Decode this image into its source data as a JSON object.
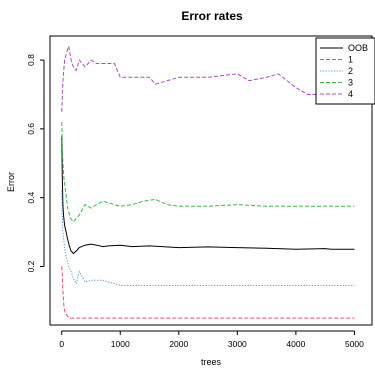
{
  "chart_data": {
    "type": "line",
    "title": "Error rates",
    "xlabel": "trees",
    "ylabel": "Error",
    "xlim": [
      0,
      5000
    ],
    "ylim": [
      0.03,
      0.87
    ],
    "x_ticks": [
      0,
      1000,
      2000,
      3000,
      4000,
      5000
    ],
    "y_ticks": [
      0.2,
      0.4,
      0.6,
      0.8
    ],
    "grid": false,
    "legend_position": "top-right",
    "series": [
      {
        "name": "OOB",
        "color": "#000000",
        "line_style": "solid",
        "points": [
          [
            1,
            0.58
          ],
          [
            10,
            0.46
          ],
          [
            20,
            0.38
          ],
          [
            30,
            0.35
          ],
          [
            50,
            0.32
          ],
          [
            75,
            0.3
          ],
          [
            100,
            0.28
          ],
          [
            130,
            0.26
          ],
          [
            160,
            0.245
          ],
          [
            200,
            0.238
          ],
          [
            250,
            0.245
          ],
          [
            300,
            0.255
          ],
          [
            400,
            0.262
          ],
          [
            500,
            0.265
          ],
          [
            600,
            0.262
          ],
          [
            700,
            0.258
          ],
          [
            800,
            0.26
          ],
          [
            1000,
            0.262
          ],
          [
            1200,
            0.258
          ],
          [
            1500,
            0.26
          ],
          [
            2000,
            0.255
          ],
          [
            2500,
            0.257
          ],
          [
            3000,
            0.255
          ],
          [
            3500,
            0.253
          ],
          [
            4000,
            0.25
          ],
          [
            4500,
            0.252
          ],
          [
            4600,
            0.25
          ],
          [
            5000,
            0.25
          ]
        ]
      },
      {
        "name": "1",
        "color": "#df536b",
        "line_style": "dashed",
        "points": [
          [
            1,
            0.2
          ],
          [
            10,
            0.17
          ],
          [
            20,
            0.13
          ],
          [
            30,
            0.1
          ],
          [
            40,
            0.08
          ],
          [
            60,
            0.065
          ],
          [
            80,
            0.06
          ],
          [
            100,
            0.055
          ],
          [
            150,
            0.05
          ],
          [
            5000,
            0.05
          ]
        ]
      },
      {
        "name": "2",
        "color": "#4d96d8",
        "line_style": "dotted",
        "points": [
          [
            1,
            0.42
          ],
          [
            10,
            0.34
          ],
          [
            20,
            0.3
          ],
          [
            40,
            0.27
          ],
          [
            60,
            0.24
          ],
          [
            90,
            0.22
          ],
          [
            120,
            0.2
          ],
          [
            150,
            0.19
          ],
          [
            200,
            0.165
          ],
          [
            250,
            0.15
          ],
          [
            300,
            0.185
          ],
          [
            350,
            0.17
          ],
          [
            400,
            0.155
          ],
          [
            500,
            0.16
          ],
          [
            600,
            0.16
          ],
          [
            700,
            0.16
          ],
          [
            800,
            0.155
          ],
          [
            900,
            0.15
          ],
          [
            1000,
            0.145
          ],
          [
            5000,
            0.145
          ]
        ]
      },
      {
        "name": "3",
        "color": "#3cb84a",
        "line_style": "dashed",
        "points": [
          [
            1,
            0.62
          ],
          [
            10,
            0.55
          ],
          [
            20,
            0.5
          ],
          [
            40,
            0.45
          ],
          [
            60,
            0.43
          ],
          [
            80,
            0.4
          ],
          [
            100,
            0.37
          ],
          [
            150,
            0.34
          ],
          [
            200,
            0.33
          ],
          [
            250,
            0.34
          ],
          [
            300,
            0.35
          ],
          [
            400,
            0.38
          ],
          [
            500,
            0.37
          ],
          [
            600,
            0.38
          ],
          [
            700,
            0.39
          ],
          [
            800,
            0.385
          ],
          [
            900,
            0.38
          ],
          [
            1000,
            0.375
          ],
          [
            1200,
            0.38
          ],
          [
            1400,
            0.39
          ],
          [
            1600,
            0.395
          ],
          [
            1800,
            0.38
          ],
          [
            2000,
            0.375
          ],
          [
            2500,
            0.375
          ],
          [
            3000,
            0.38
          ],
          [
            3500,
            0.375
          ],
          [
            4000,
            0.375
          ],
          [
            4500,
            0.375
          ],
          [
            5000,
            0.375
          ]
        ]
      },
      {
        "name": "4",
        "color": "#a64ebf",
        "line_style": "dashed",
        "points": [
          [
            1,
            0.65
          ],
          [
            15,
            0.72
          ],
          [
            30,
            0.76
          ],
          [
            50,
            0.8
          ],
          [
            80,
            0.82
          ],
          [
            120,
            0.84
          ],
          [
            160,
            0.8
          ],
          [
            200,
            0.78
          ],
          [
            250,
            0.77
          ],
          [
            300,
            0.8
          ],
          [
            400,
            0.78
          ],
          [
            500,
            0.8
          ],
          [
            600,
            0.79
          ],
          [
            700,
            0.79
          ],
          [
            800,
            0.79
          ],
          [
            900,
            0.79
          ],
          [
            1000,
            0.75
          ],
          [
            1500,
            0.75
          ],
          [
            1600,
            0.73
          ],
          [
            2000,
            0.75
          ],
          [
            2500,
            0.75
          ],
          [
            3000,
            0.76
          ],
          [
            3200,
            0.74
          ],
          [
            3500,
            0.75
          ],
          [
            3700,
            0.76
          ],
          [
            4000,
            0.72
          ],
          [
            4200,
            0.7
          ],
          [
            4400,
            0.7
          ],
          [
            4500,
            0.71
          ],
          [
            4700,
            0.72
          ],
          [
            4800,
            0.71
          ]
        ]
      }
    ]
  }
}
